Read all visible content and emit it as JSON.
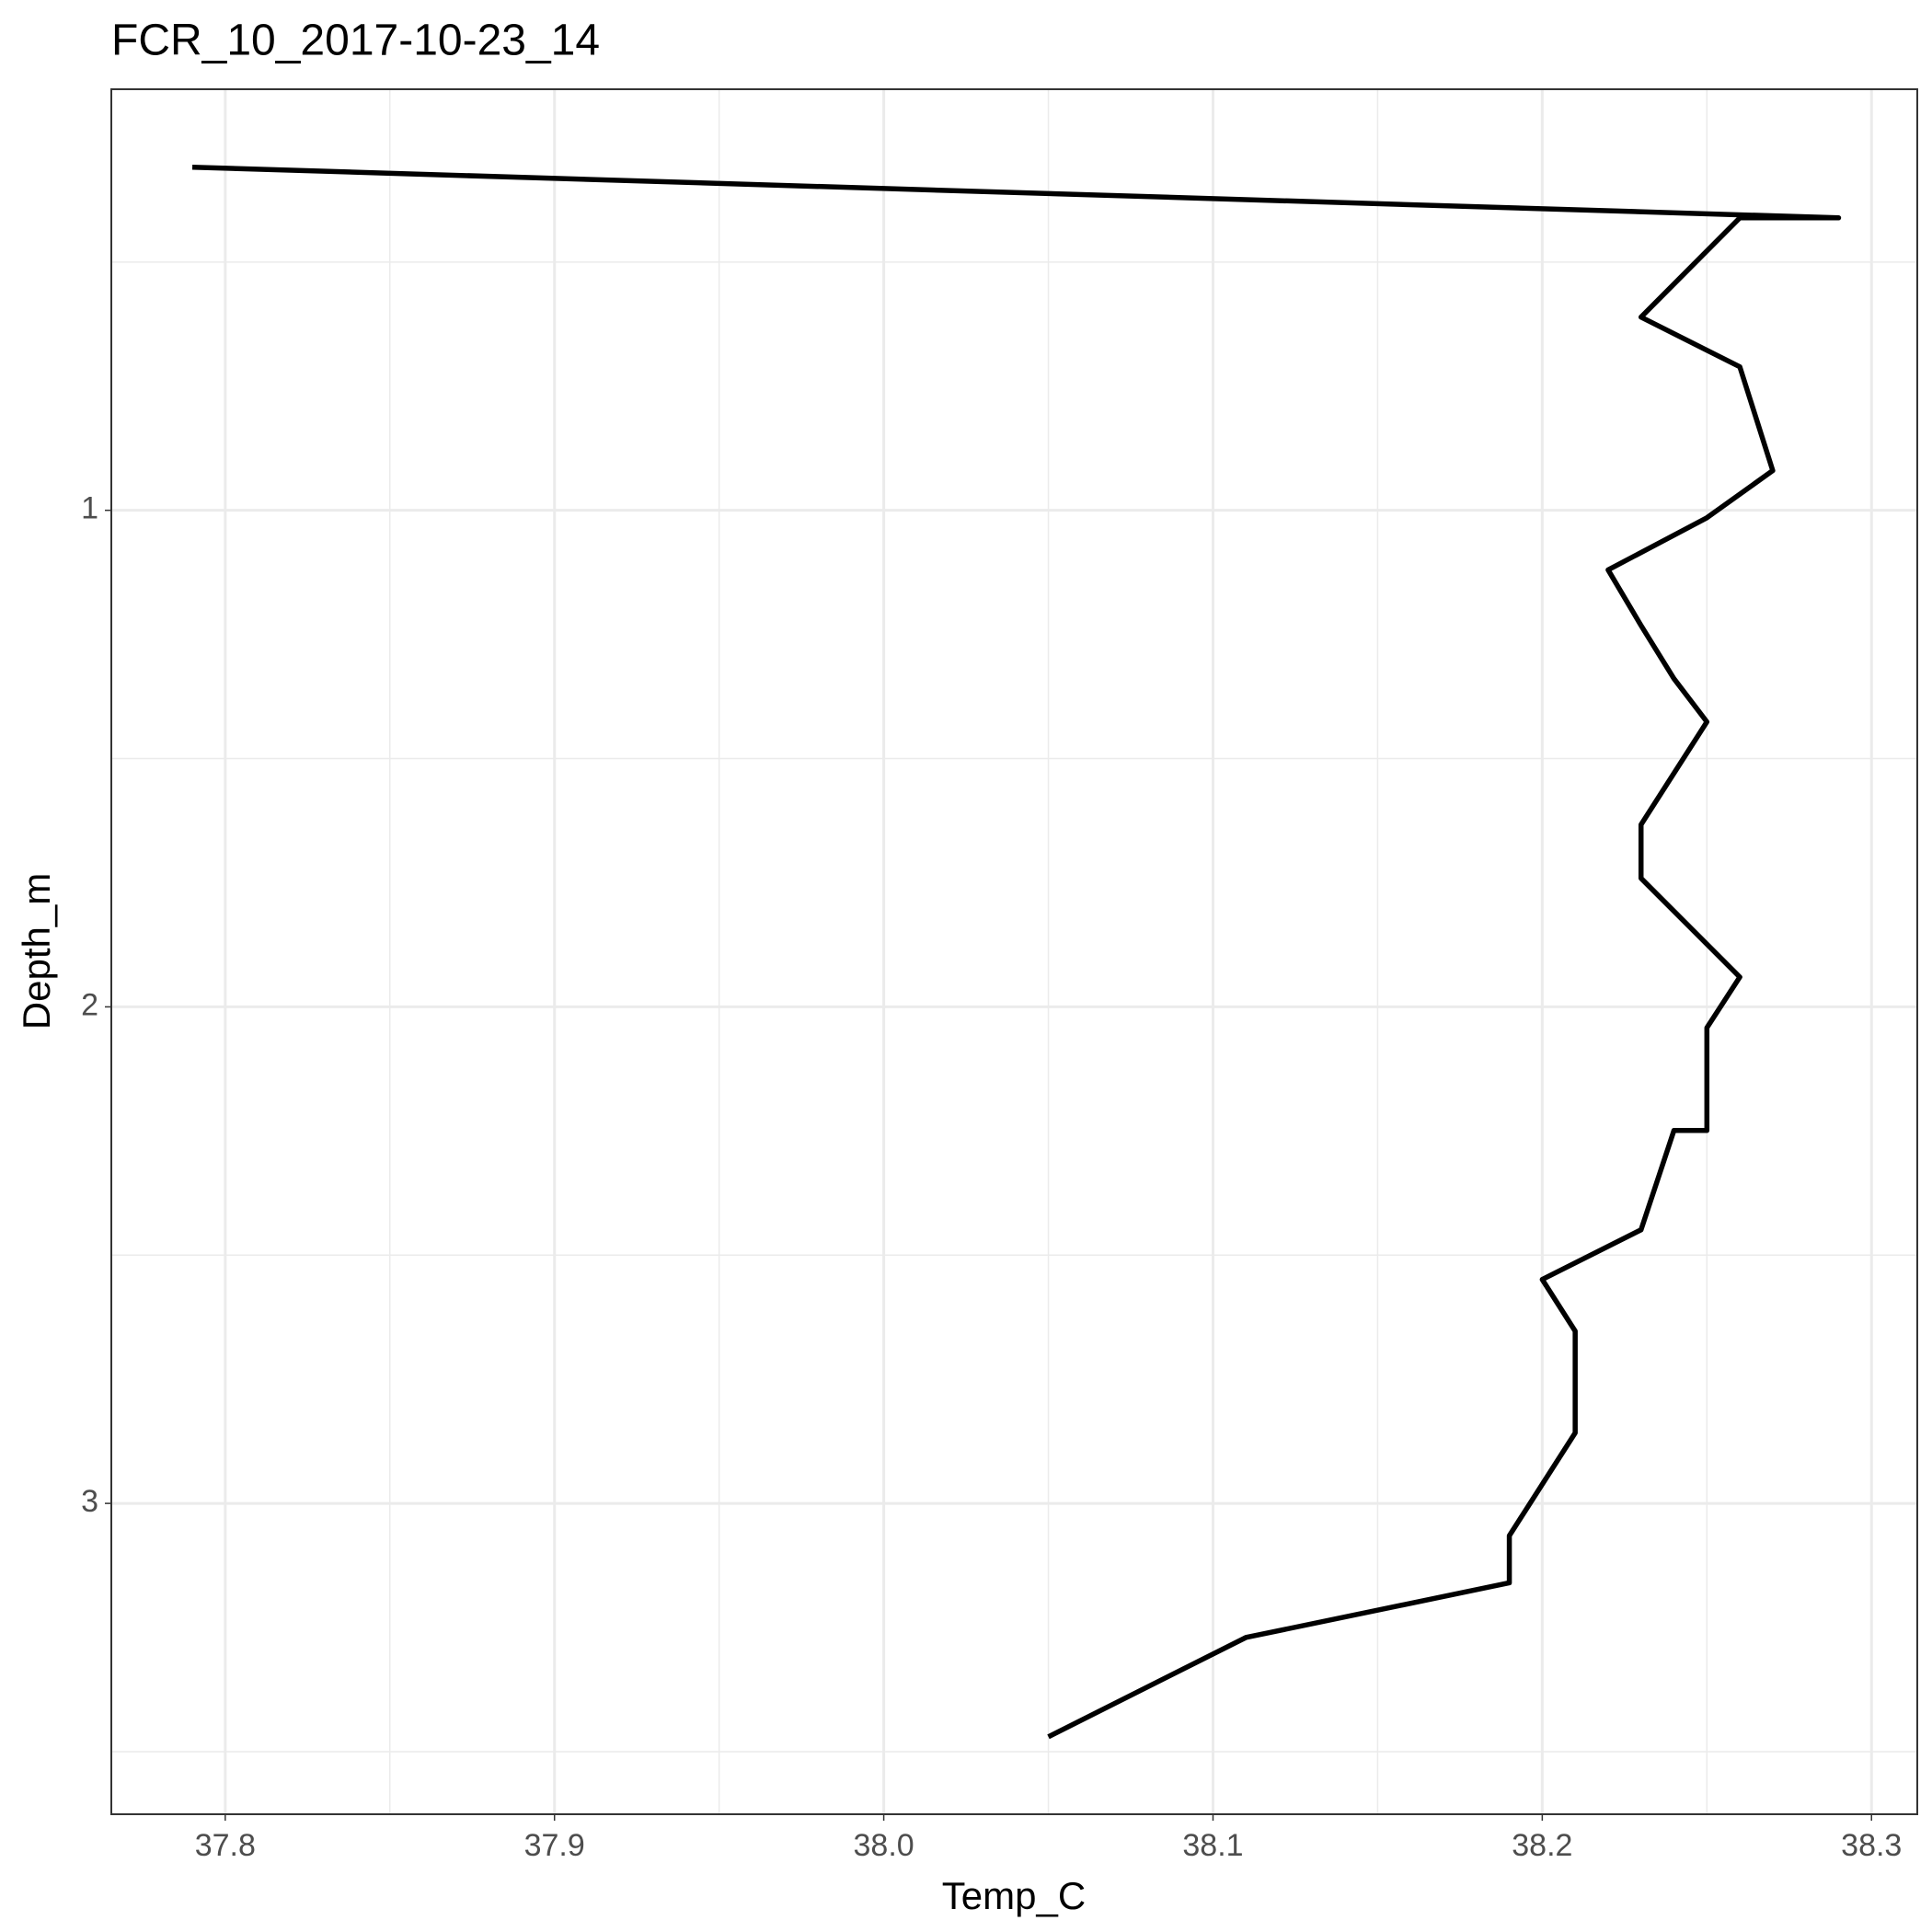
{
  "chart_data": {
    "type": "line",
    "title": "FCR_10_2017-10-23_14",
    "x_label": "Temp_C",
    "y_label": "Depth_m",
    "x": [
      37.79,
      38.29,
      38.26,
      38.23,
      38.26,
      38.27,
      38.25,
      38.22,
      38.23,
      38.24,
      38.25,
      38.23,
      38.23,
      38.26,
      38.25,
      38.25,
      38.24,
      38.23,
      38.2,
      38.21,
      38.21,
      38.19,
      38.19,
      38.11,
      38.05
    ],
    "y": [
      0.309,
      0.411,
      0.411,
      0.611,
      0.711,
      0.92,
      1.015,
      1.12,
      1.232,
      1.339,
      1.426,
      1.633,
      1.741,
      1.94,
      2.042,
      2.249,
      2.249,
      2.449,
      2.549,
      2.653,
      2.858,
      3.065,
      3.16,
      3.27,
      3.47
    ],
    "color": "#000000",
    "xlim": [
      37.7654,
      38.3139
    ],
    "ylim": [
      0.152,
      3.626
    ],
    "y_reversed": true,
    "xticks": [
      {
        "value": 37.8,
        "label": "37.8"
      },
      {
        "value": 37.9,
        "label": "37.9"
      },
      {
        "value": 38.0,
        "label": "38.0"
      },
      {
        "value": 38.1,
        "label": "38.1"
      },
      {
        "value": 38.2,
        "label": "38.2"
      },
      {
        "value": 38.3,
        "label": "38.3"
      }
    ],
    "yticks": [
      1,
      2,
      3
    ],
    "x_minor_ticks": [
      37.85,
      37.95,
      38.05,
      38.15,
      38.25
    ],
    "y_minor_ticks": [
      0.5,
      1.5,
      2.5,
      3.5
    ],
    "grid": true
  }
}
